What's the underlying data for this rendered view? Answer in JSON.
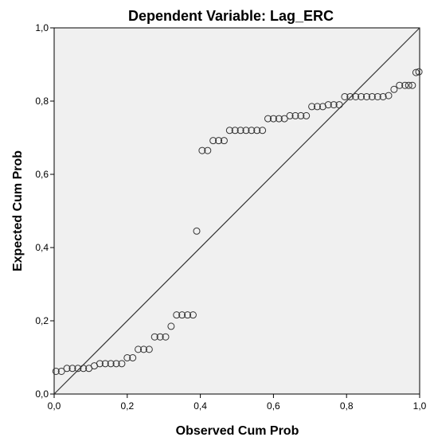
{
  "chart_data": {
    "type": "scatter",
    "title": "Dependent Variable: Lag_ERC",
    "xlabel": "Observed Cum Prob",
    "ylabel": "Expected Cum Prob",
    "xlim": [
      0,
      1
    ],
    "ylim": [
      0,
      1
    ],
    "x_ticks": [
      "0,0",
      "0,2",
      "0,4",
      "0,6",
      "0,8",
      "1,0"
    ],
    "y_ticks": [
      "0,0",
      "0,2",
      "0,4",
      "0,6",
      "0,8",
      "1,0"
    ],
    "grid": false,
    "reference_line": {
      "from": [
        0,
        0
      ],
      "to": [
        1,
        1
      ]
    },
    "background_color": "#f0f0f0",
    "marker": "open-circle",
    "points": [
      [
        0.005,
        0.062
      ],
      [
        0.02,
        0.062
      ],
      [
        0.035,
        0.07
      ],
      [
        0.05,
        0.07
      ],
      [
        0.065,
        0.07
      ],
      [
        0.08,
        0.07
      ],
      [
        0.095,
        0.07
      ],
      [
        0.11,
        0.077
      ],
      [
        0.125,
        0.083
      ],
      [
        0.14,
        0.083
      ],
      [
        0.155,
        0.083
      ],
      [
        0.17,
        0.083
      ],
      [
        0.185,
        0.083
      ],
      [
        0.2,
        0.099
      ],
      [
        0.215,
        0.099
      ],
      [
        0.23,
        0.122
      ],
      [
        0.245,
        0.122
      ],
      [
        0.26,
        0.122
      ],
      [
        0.275,
        0.156
      ],
      [
        0.29,
        0.156
      ],
      [
        0.305,
        0.156
      ],
      [
        0.32,
        0.185
      ],
      [
        0.335,
        0.216
      ],
      [
        0.35,
        0.216
      ],
      [
        0.365,
        0.216
      ],
      [
        0.38,
        0.216
      ],
      [
        0.39,
        0.445
      ],
      [
        0.405,
        0.665
      ],
      [
        0.42,
        0.665
      ],
      [
        0.435,
        0.692
      ],
      [
        0.45,
        0.692
      ],
      [
        0.465,
        0.692
      ],
      [
        0.48,
        0.72
      ],
      [
        0.495,
        0.72
      ],
      [
        0.51,
        0.72
      ],
      [
        0.525,
        0.72
      ],
      [
        0.54,
        0.72
      ],
      [
        0.555,
        0.72
      ],
      [
        0.57,
        0.72
      ],
      [
        0.585,
        0.752
      ],
      [
        0.6,
        0.752
      ],
      [
        0.615,
        0.752
      ],
      [
        0.63,
        0.752
      ],
      [
        0.645,
        0.76
      ],
      [
        0.66,
        0.76
      ],
      [
        0.675,
        0.76
      ],
      [
        0.69,
        0.76
      ],
      [
        0.705,
        0.785
      ],
      [
        0.72,
        0.785
      ],
      [
        0.735,
        0.785
      ],
      [
        0.75,
        0.79
      ],
      [
        0.765,
        0.79
      ],
      [
        0.78,
        0.79
      ],
      [
        0.795,
        0.812
      ],
      [
        0.81,
        0.812
      ],
      [
        0.825,
        0.812
      ],
      [
        0.84,
        0.812
      ],
      [
        0.855,
        0.812
      ],
      [
        0.87,
        0.812
      ],
      [
        0.885,
        0.812
      ],
      [
        0.9,
        0.812
      ],
      [
        0.915,
        0.815
      ],
      [
        0.93,
        0.832
      ],
      [
        0.945,
        0.843
      ],
      [
        0.96,
        0.843
      ],
      [
        0.97,
        0.843
      ],
      [
        0.98,
        0.843
      ],
      [
        0.99,
        0.878
      ],
      [
        0.998,
        0.88
      ]
    ]
  }
}
